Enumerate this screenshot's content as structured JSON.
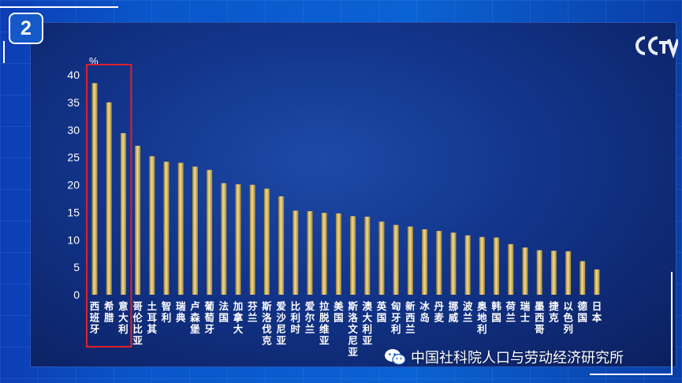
{
  "badge": {
    "number": "2"
  },
  "watermark": {
    "text": "中国社科院人口与劳动经济研究所",
    "icon": "wechat-icon"
  },
  "logo": {
    "icon": "cctv-logo"
  },
  "colors": {
    "bar": "#d9c06c",
    "bar_dark": "#8a6d2a",
    "highlight_box": "#e0202a",
    "panel": "#12348a"
  },
  "chart_data": {
    "type": "bar",
    "title": "",
    "xlabel": "",
    "ylabel": "%",
    "ylim": [
      0,
      40
    ],
    "yticks": [
      0,
      5,
      10,
      15,
      20,
      25,
      30,
      35,
      40
    ],
    "categories": [
      "西班牙",
      "希腊",
      "意大利",
      "哥伦比亚",
      "土耳其",
      "智利",
      "瑞典",
      "卢森堡",
      "葡萄牙",
      "法国",
      "加拿大",
      "芬兰",
      "斯洛伐克",
      "爱沙尼亚",
      "比利时",
      "爱尔兰",
      "拉脱维亚",
      "美国",
      "斯洛文尼亚",
      "澳大利亚",
      "英国",
      "匈牙利",
      "新西兰",
      "冰岛",
      "丹麦",
      "挪威",
      "波兰",
      "奥地利",
      "韩国",
      "荷兰",
      "瑞士",
      "墨西哥",
      "捷克",
      "以色列",
      "德国",
      "日本"
    ],
    "values": [
      38.5,
      35.0,
      29.4,
      27.1,
      25.2,
      24.2,
      24.0,
      23.3,
      22.7,
      20.3,
      20.1,
      20.0,
      19.3,
      17.9,
      15.3,
      15.2,
      14.9,
      14.8,
      14.3,
      14.2,
      13.3,
      12.7,
      12.4,
      11.9,
      11.6,
      11.3,
      10.8,
      10.5,
      10.4,
      9.2,
      8.6,
      8.1,
      8.0,
      7.9,
      6.1,
      4.6
    ],
    "highlighted_categories": [
      "西班牙",
      "希腊",
      "意大利"
    ],
    "grid": false,
    "legend": "none"
  }
}
